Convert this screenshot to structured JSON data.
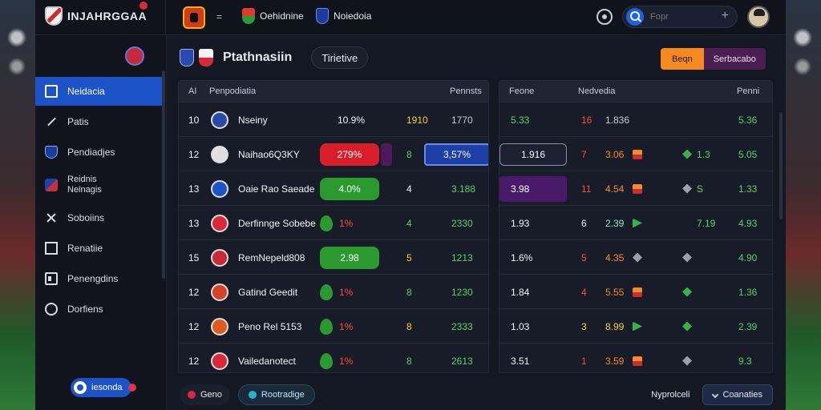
{
  "header": {
    "brand": "INJAHRGGAA",
    "vs_label": "=",
    "team_a": "Oehidnine",
    "team_b": "Noiedoia",
    "search_placeholder": "Fopr"
  },
  "sidebar": {
    "items": [
      {
        "label": "Neidacia",
        "icon": "stadium-icon",
        "active": true
      },
      {
        "label": "Patis",
        "icon": "pen-icon"
      },
      {
        "label": "Pendiadjes",
        "icon": "badge-icon"
      },
      {
        "label": "Reidnis\nNeinagis",
        "icon": "flag-icon"
      },
      {
        "label": "Soboiins",
        "icon": "cross-icon"
      },
      {
        "label": "Renatiie",
        "icon": "square-icon"
      },
      {
        "label": "Penengdins",
        "icon": "card-icon"
      },
      {
        "label": "Dorfiens",
        "icon": "gear-icon"
      }
    ],
    "pill_label": "iesonda"
  },
  "main": {
    "title": "Ptathnasiin",
    "tab": "Tirietive",
    "seg_a": "Beqn",
    "seg_b": "Serbacabo"
  },
  "left_table": {
    "headers": {
      "num": "AI",
      "name": "Penpodiatia",
      "value": "Pennsts"
    },
    "rows": [
      {
        "num": "10",
        "name": "Nseiny",
        "pct": "10.9%",
        "mid": "1910",
        "val": "1770",
        "chip": "none"
      },
      {
        "num": "12",
        "name": "Naihao6Q3KY",
        "pct": "279%",
        "mid": "8",
        "val": "3,57%",
        "chip": "red"
      },
      {
        "num": "13",
        "name": "Oaie Rao Saeade",
        "pct": "4.0%",
        "mid": "4",
        "val": "3.188",
        "chip": "green"
      },
      {
        "num": "13",
        "name": "Derfinnge Sobebe",
        "pct": "1%",
        "mid": "4",
        "val": "2330",
        "chip": "lozenge"
      },
      {
        "num": "15",
        "name": "RemNepeld808",
        "pct": "2.98",
        "mid": "5",
        "val": "1213",
        "chip": "green"
      },
      {
        "num": "12",
        "name": "Gatind Geedit",
        "pct": "1%",
        "mid": "8",
        "val": "1230",
        "chip": "lozenge"
      },
      {
        "num": "12",
        "name": "Peno Rel 5153",
        "pct": "1%",
        "mid": "8",
        "val": "2333",
        "chip": "lozenge"
      },
      {
        "num": "12",
        "name": "Vailedanotect",
        "pct": "1%",
        "mid": "8",
        "val": "2613",
        "chip": "lozenge"
      }
    ]
  },
  "right_table": {
    "headers": {
      "a": "Feone",
      "b": "Nedvedia",
      "c": "Penni"
    },
    "rows": [
      {
        "a": "5.33",
        "b1": "16",
        "b2": "1.836",
        "c": "5.36"
      },
      {
        "a": "1.916",
        "b1": "7",
        "b2": "3.06",
        "c1": "1.3",
        "c": "5.05"
      },
      {
        "a": "3.98",
        "b1": "11",
        "b2": "4.54",
        "c1": "S",
        "c": "1.33"
      },
      {
        "a": "1.93",
        "b1": "6",
        "b2": "2.39",
        "c1": "7.19",
        "c": "4.93"
      },
      {
        "a": "1.6%",
        "b1": "5",
        "b2": "4.35",
        "c": "4.90"
      },
      {
        "a": "1.84",
        "b1": "4",
        "b2": "5.55",
        "c": "1.36"
      },
      {
        "a": "1.03",
        "b1": "3",
        "b2": "8.99",
        "c": "2.39"
      },
      {
        "a": "3.51",
        "b1": "1",
        "b2": "3.59",
        "c": "9.3"
      }
    ]
  },
  "footer": {
    "left_a": "Geno",
    "left_b": "Rootradige",
    "right_label": "Nyprolceli",
    "right_btn": "Coanaties"
  },
  "colors": {
    "accent": "#1d53c8",
    "danger": "#d81e2a",
    "success": "#2a9a2e",
    "warning": "#f58a1e"
  }
}
